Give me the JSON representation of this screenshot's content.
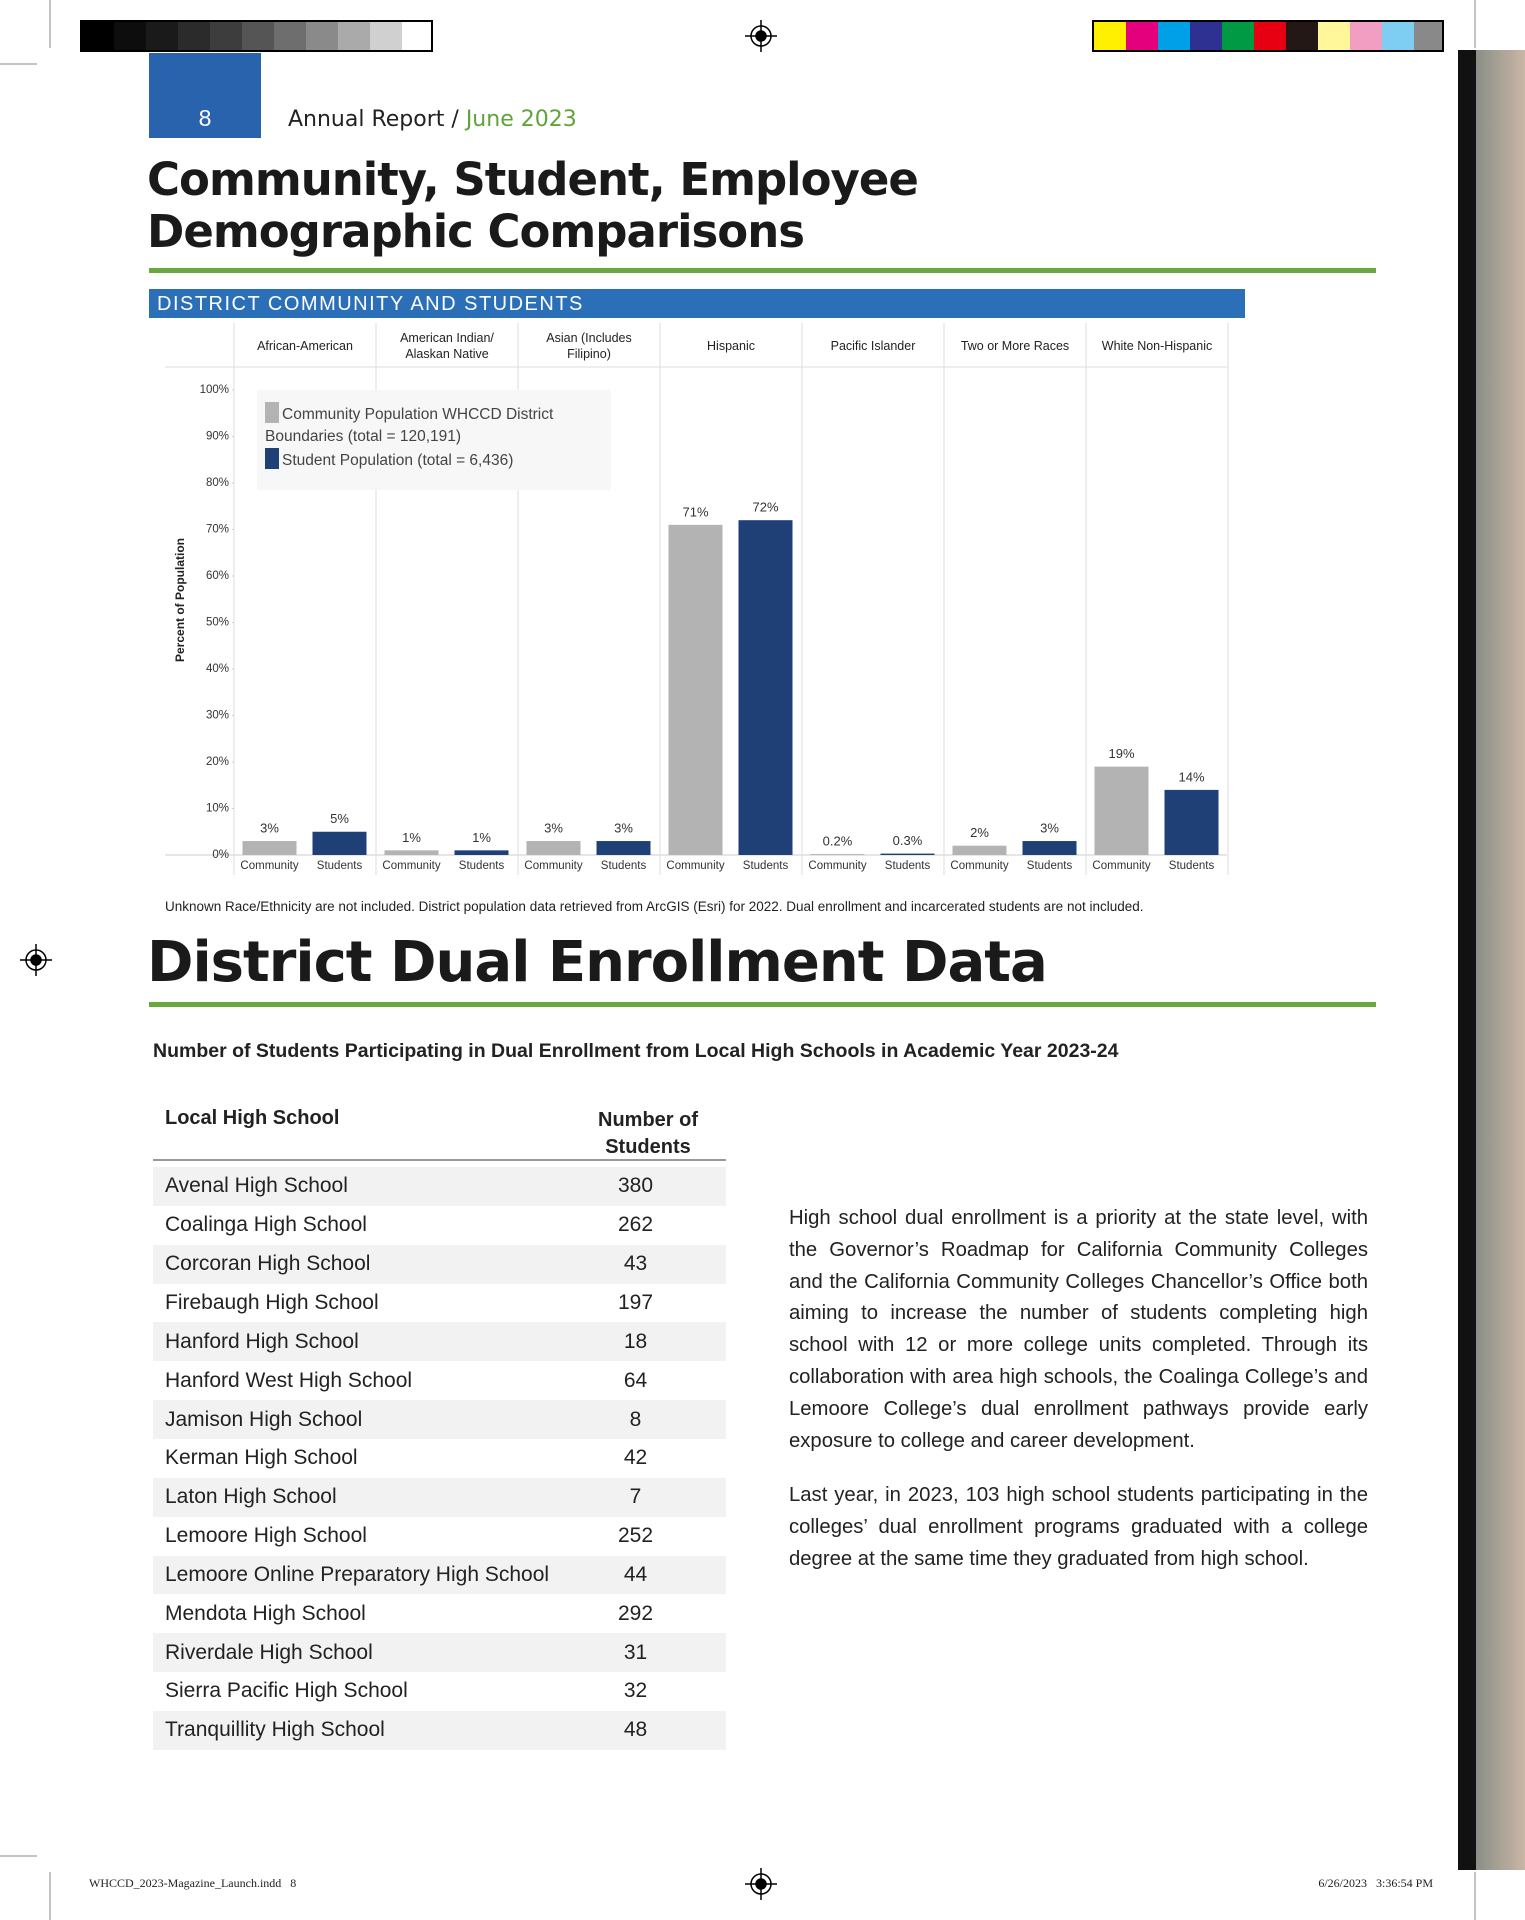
{
  "header": {
    "page_number": "8",
    "report": "Annual Report /",
    "date": "June 2023"
  },
  "title": [
    "Community, Student, Employee",
    "Demographic Comparisons"
  ],
  "section_banner": "DISTRICT COMMUNITY AND STUDENTS",
  "chart_data": {
    "type": "bar",
    "y_label": "Percent of Population",
    "categories": [
      "African-American",
      "American Indian/ Alaskan Native",
      "Asian (Includes Filipino)",
      "Hispanic",
      "Pacific Islander",
      "Two or More Races",
      "White Non-Hispanic"
    ],
    "bar_labels": [
      "Community",
      "Students"
    ],
    "series": [
      {
        "name": "Community Population WHCCD District Boundaries (total = 120,191)",
        "color": "#b3b3b3",
        "values": [
          3,
          1,
          3,
          71,
          0.2,
          2,
          19
        ],
        "value_labels": [
          "3%",
          "1%",
          "3%",
          "71%",
          "0.2%",
          "2%",
          "19%"
        ]
      },
      {
        "name": "Student Population (total = 6,436)",
        "color": "#1f3f77",
        "values": [
          5,
          1,
          3,
          72,
          0.3,
          3,
          14
        ],
        "value_labels": [
          "5%",
          "1%",
          "3%",
          "72%",
          "0.3%",
          "3%",
          "14%"
        ]
      }
    ],
    "ylim": [
      0,
      100
    ],
    "yticks": [
      {
        "value": 0,
        "label": "0%"
      },
      {
        "value": 10,
        "label": "10%"
      },
      {
        "value": 20,
        "label": "20%"
      },
      {
        "value": 30,
        "label": "30%"
      },
      {
        "value": 40,
        "label": "40%"
      },
      {
        "value": 50,
        "label": "50%"
      },
      {
        "value": 60,
        "label": "60%"
      },
      {
        "value": 70,
        "label": "70%"
      },
      {
        "value": 80,
        "label": "80%"
      },
      {
        "value": 90,
        "label": "90%"
      },
      {
        "value": 100,
        "label": "100%"
      }
    ],
    "grid": false,
    "legend": "upper left"
  },
  "footnote": "Unknown Race/Ethnicity are not included. District population data retrieved from ArcGIS (Esri) for 2022. Dual enrollment and incarcerated students are not included.",
  "section_title": "District Dual Enrollment Data",
  "table": {
    "caption": "Number of Students Participating in Dual Enrollment from Local High Schools in Academic Year 2023-24",
    "headers": [
      "Local High School",
      "Number of Students"
    ],
    "rows": [
      [
        "Avenal High School",
        380
      ],
      [
        "Coalinga High School",
        262
      ],
      [
        "Corcoran High School",
        43
      ],
      [
        "Firebaugh High School",
        197
      ],
      [
        "Hanford High School",
        18
      ],
      [
        "Hanford West High School",
        64
      ],
      [
        "Jamison High School",
        8
      ],
      [
        "Kerman High School",
        42
      ],
      [
        "Laton High School",
        7
      ],
      [
        "Lemoore High School",
        252
      ],
      [
        "Lemoore Online Preparatory High School",
        44
      ],
      [
        "Mendota High School",
        292
      ],
      [
        "Riverdale High School",
        31
      ],
      [
        "Sierra Pacific High School",
        32
      ],
      [
        "Tranquillity High School",
        48
      ]
    ]
  },
  "paragraphs": [
    "High school dual enrollment is a priority at the state level, with the Governor’s Roadmap for California Community Colleges and the California Community Colleges Chancellor’s Office both aiming to increase the number of students completing high school with 12 or more college units completed. Through its collaboration with area high schools, the Coalinga College’s and Lemoore College’s dual enrollment pathways provide early exposure to college and career development.",
    "Last year, in 2023, 103 high school students participating in the colleges’ dual enrollment programs graduated with a college degree at the same time they graduated from high school."
  ],
  "slug": {
    "file": "WHCCD_2023-Magazine_Launch.indd   8",
    "timestamp": "6/26/2023   3:36:54 PM"
  }
}
